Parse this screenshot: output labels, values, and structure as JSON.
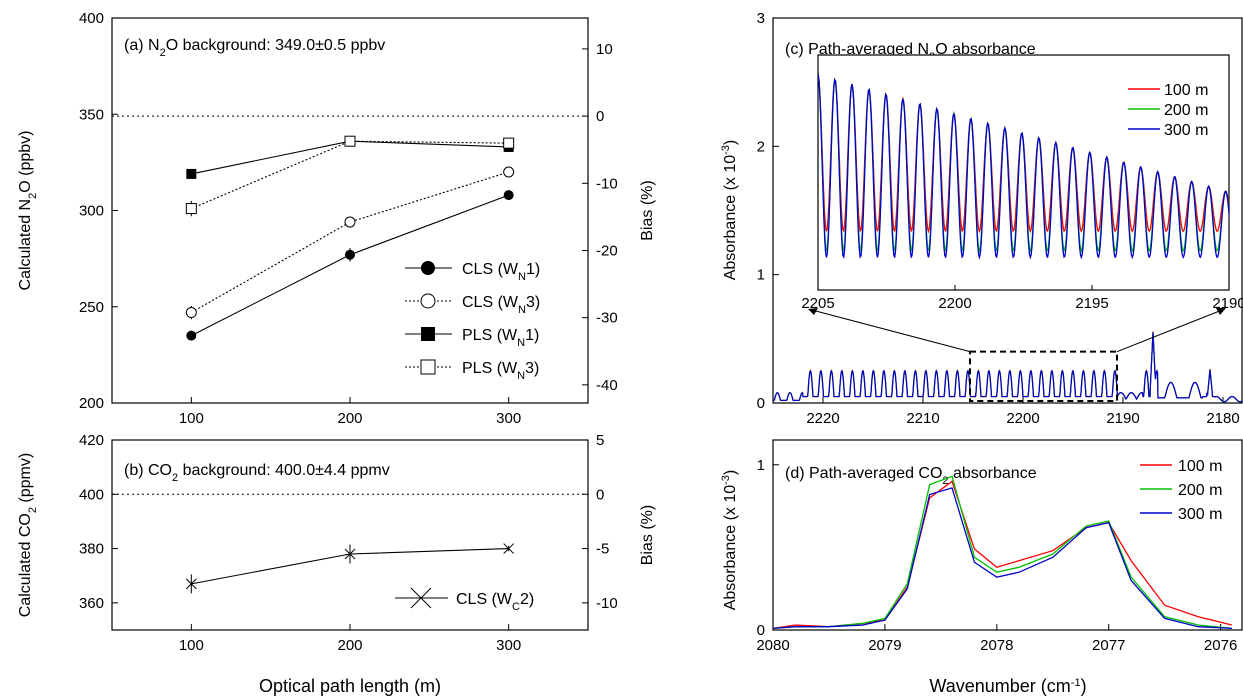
{
  "chart_data": [
    {
      "id": "a",
      "type": "line",
      "title": "(a) N2O background: 349.0±0.5 ppbv",
      "title_parts": [
        "(a) N",
        "2",
        "O background: 349.0±0.5 ppbv"
      ],
      "xlabel": "Optical path length (m)",
      "ylabel_parts": [
        "Calculated N",
        "2",
        "O (ppbv)"
      ],
      "y2label": "Bias (%)",
      "xlim": [
        50,
        350
      ],
      "ylim": [
        200,
        400
      ],
      "y2lim": [
        -42.7,
        14.6
      ],
      "xticks": [
        "100",
        "200",
        "300"
      ],
      "yticks": [
        "200",
        "250",
        "300",
        "350",
        "400"
      ],
      "y2ticks": [
        "-40",
        "-30",
        "-20",
        "-10",
        "0",
        "10"
      ],
      "reference_line": 349.0,
      "series": [
        {
          "name_parts": [
            "CLS (W",
            "N",
            "1)"
          ],
          "marker": "circle-filled",
          "dash": false,
          "x": [
            100,
            200,
            300
          ],
          "y": [
            235,
            277,
            308
          ],
          "err": [
            1.5,
            3.5,
            1.5
          ]
        },
        {
          "name_parts": [
            "CLS (W",
            "N",
            "3)"
          ],
          "marker": "circle-open",
          "dash": true,
          "x": [
            100,
            200,
            300
          ],
          "y": [
            247,
            294,
            320
          ],
          "err": [
            3.5,
            2,
            2
          ]
        },
        {
          "name_parts": [
            "PLS (W",
            "N",
            "1)"
          ],
          "marker": "square-filled",
          "dash": false,
          "x": [
            100,
            200,
            300
          ],
          "y": [
            319,
            336,
            333
          ],
          "err": [
            1,
            2,
            2
          ]
        },
        {
          "name_parts": [
            "PLS (W",
            "N",
            "3)"
          ],
          "marker": "square-open",
          "dash": true,
          "x": [
            100,
            200,
            300
          ],
          "y": [
            301,
            336,
            335
          ],
          "err": [
            4,
            2,
            2
          ]
        }
      ]
    },
    {
      "id": "b",
      "type": "line",
      "title_parts": [
        "(b) CO",
        "2",
        " background: 400.0±4.4 ppmv"
      ],
      "ylabel_parts": [
        "Calculated CO",
        "2",
        " (ppmv)"
      ],
      "y2label": "Bias (%)",
      "xlim": [
        50,
        350
      ],
      "ylim": [
        350,
        420
      ],
      "y2lim": [
        -12.5,
        5
      ],
      "xticks": [
        "100",
        "200",
        "300"
      ],
      "yticks": [
        "360",
        "380",
        "400",
        "420"
      ],
      "y2ticks": [
        "-10",
        "-5",
        "0",
        "5"
      ],
      "reference_line": 400.0,
      "series": [
        {
          "name_parts": [
            "CLS (W",
            "C",
            "2)"
          ],
          "marker": "x",
          "dash": false,
          "x": [
            100,
            200,
            300
          ],
          "y": [
            367,
            378,
            380
          ],
          "err": [
            3.5,
            3.5,
            1
          ]
        }
      ]
    },
    {
      "id": "c",
      "type": "line",
      "title_parts": [
        "(c) Path-averaged N",
        "2",
        "O absorbance"
      ],
      "ylabel_parts": [
        "Absorbance (x 10",
        "-3",
        ")"
      ],
      "xlim": [
        2225,
        2178
      ],
      "ylim": [
        0,
        3
      ],
      "xticks": [
        "2220",
        "2210",
        "2200",
        "2190",
        "2180"
      ],
      "yticks": [
        "0",
        "1",
        "2",
        "3"
      ],
      "inset": {
        "xlim": [
          2205,
          2190
        ],
        "ylim": [
          0.9,
          2.7
        ],
        "xticks": [
          "2205",
          "2200",
          "2195",
          "2190"
        ]
      },
      "series": [
        {
          "name": "100 m",
          "color": "#ff0000"
        },
        {
          "name": "200 m",
          "color": "#00c000"
        },
        {
          "name": "300 m",
          "color": "#0000cc"
        }
      ]
    },
    {
      "id": "d",
      "type": "line",
      "title_parts": [
        "(d) Path-averaged CO",
        "2",
        " absorbance"
      ],
      "xlabel_parts": [
        "Wavenumber (cm",
        "-1",
        ")"
      ],
      "ylabel_parts": [
        "Absorbance (x 10",
        "-3",
        ")"
      ],
      "xlim": [
        2080,
        2075.8
      ],
      "ylim": [
        0,
        1.15
      ],
      "xticks": [
        "2080",
        "2079",
        "2078",
        "2077",
        "2076"
      ],
      "yticks": [
        "0",
        "1"
      ],
      "series": [
        {
          "name": "100 m",
          "color": "#ff0000",
          "x": [
            2080,
            2079.8,
            2079.5,
            2079.2,
            2079.0,
            2078.8,
            2078.6,
            2078.4,
            2078.2,
            2078.0,
            2077.8,
            2077.5,
            2077.2,
            2077.0,
            2076.8,
            2076.5,
            2076.2,
            2075.9
          ],
          "y": [
            0.01,
            0.03,
            0.02,
            0.04,
            0.06,
            0.26,
            0.8,
            0.9,
            0.49,
            0.38,
            0.42,
            0.48,
            0.62,
            0.65,
            0.42,
            0.15,
            0.08,
            0.03
          ]
        },
        {
          "name": "200 m",
          "color": "#00c000",
          "x": [
            2080,
            2079.8,
            2079.5,
            2079.2,
            2079.0,
            2078.8,
            2078.6,
            2078.4,
            2078.2,
            2078.0,
            2077.8,
            2077.5,
            2077.2,
            2077.0,
            2076.8,
            2076.5,
            2076.2,
            2075.9
          ],
          "y": [
            0.01,
            0.02,
            0.02,
            0.04,
            0.07,
            0.28,
            0.88,
            0.93,
            0.44,
            0.35,
            0.38,
            0.46,
            0.63,
            0.66,
            0.32,
            0.08,
            0.03,
            0.01
          ]
        },
        {
          "name": "300 m",
          "color": "#0000cc",
          "x": [
            2080,
            2079.8,
            2079.5,
            2079.2,
            2079.0,
            2078.8,
            2078.6,
            2078.4,
            2078.2,
            2078.0,
            2077.8,
            2077.5,
            2077.2,
            2077.0,
            2076.8,
            2076.5,
            2076.2,
            2075.9
          ],
          "y": [
            0.01,
            0.02,
            0.02,
            0.03,
            0.06,
            0.25,
            0.82,
            0.86,
            0.41,
            0.32,
            0.35,
            0.44,
            0.62,
            0.65,
            0.3,
            0.07,
            0.02,
            0.01
          ]
        }
      ]
    }
  ]
}
